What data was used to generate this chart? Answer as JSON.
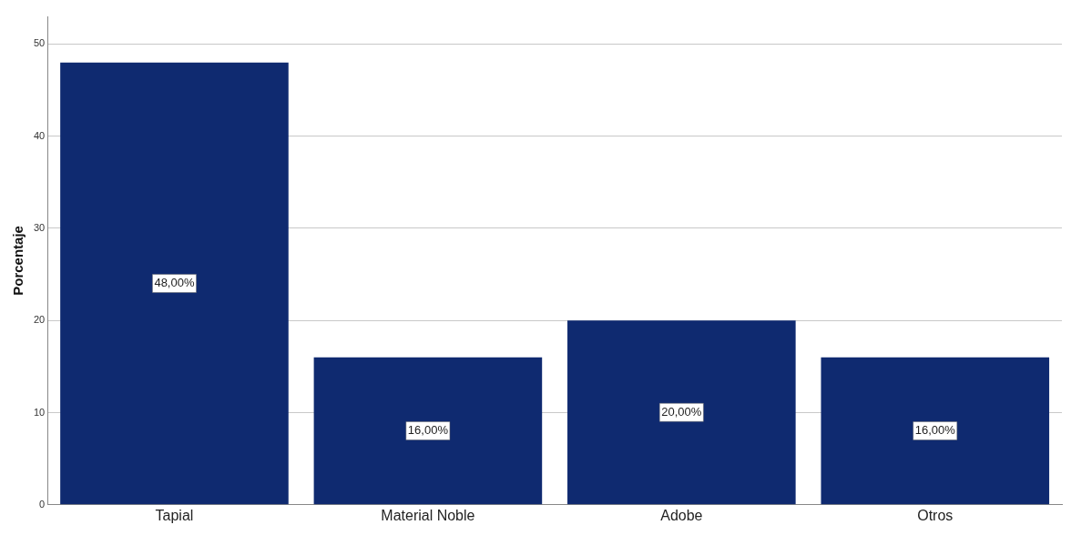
{
  "chart_data": {
    "type": "bar",
    "ylabel": "Porcentaje",
    "categories": [
      "Tapial",
      "Material Noble",
      "Adobe",
      "Otros"
    ],
    "values": [
      48,
      16,
      20,
      16
    ],
    "value_labels": [
      "48,00%",
      "16,00%",
      "20,00%",
      "16,00%"
    ],
    "color": "#0f2a70",
    "ylim": [
      0,
      53
    ],
    "yticks": [
      0,
      10,
      20,
      30,
      40,
      50
    ],
    "grid": "y",
    "legend": false
  }
}
